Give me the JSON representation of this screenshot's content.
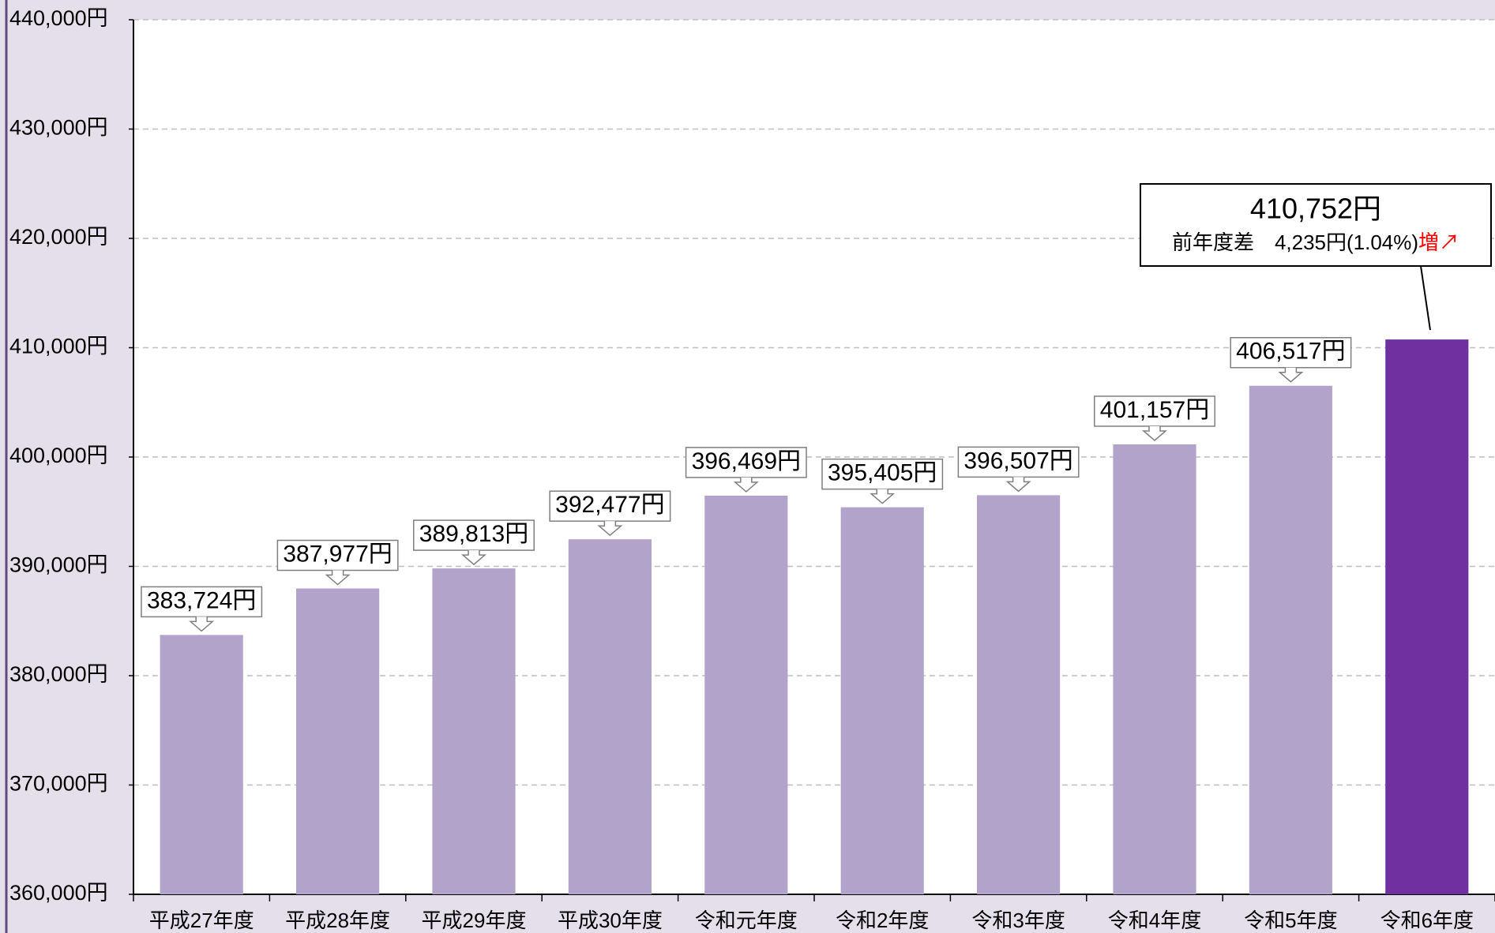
{
  "chart_data": {
    "type": "bar",
    "categories": [
      "平成27年度",
      "平成28年度",
      "平成29年度",
      "平成30年度",
      "令和元年度",
      "令和2年度",
      "令和3年度",
      "令和4年度",
      "令和5年度",
      "令和6年度"
    ],
    "values": [
      383724,
      387977,
      389813,
      392477,
      396469,
      395405,
      396507,
      401157,
      406517,
      410752
    ],
    "value_labels": [
      "383,724円",
      "387,977円",
      "389,813円",
      "392,477円",
      "396,469円",
      "395,405円",
      "396,507円",
      "401,157円",
      "406,517円",
      "410,752円"
    ],
    "colors": [
      "#b1a3c9",
      "#b1a3c9",
      "#b1a3c9",
      "#b1a3c9",
      "#b1a3c9",
      "#b1a3c9",
      "#b1a3c9",
      "#b1a3c9",
      "#b1a3c9",
      "#7030a0"
    ],
    "ylim": [
      360000,
      440000
    ],
    "yticks": [
      {
        "value": 360000,
        "label": "360,000円"
      },
      {
        "value": 370000,
        "label": "370,000円"
      },
      {
        "value": 380000,
        "label": "380,000円"
      },
      {
        "value": 390000,
        "label": "390,000円"
      },
      {
        "value": 400000,
        "label": "400,000円"
      },
      {
        "value": 410000,
        "label": "410,000円"
      },
      {
        "value": 420000,
        "label": "420,000円"
      },
      {
        "value": 430000,
        "label": "430,000円"
      },
      {
        "value": 440000,
        "label": "440,000円"
      }
    ],
    "grid": true,
    "annotation": {
      "text": "前年度差　4,235円(1.04%)",
      "highlight": "増↗",
      "highlight_color": "#ff0000"
    }
  }
}
